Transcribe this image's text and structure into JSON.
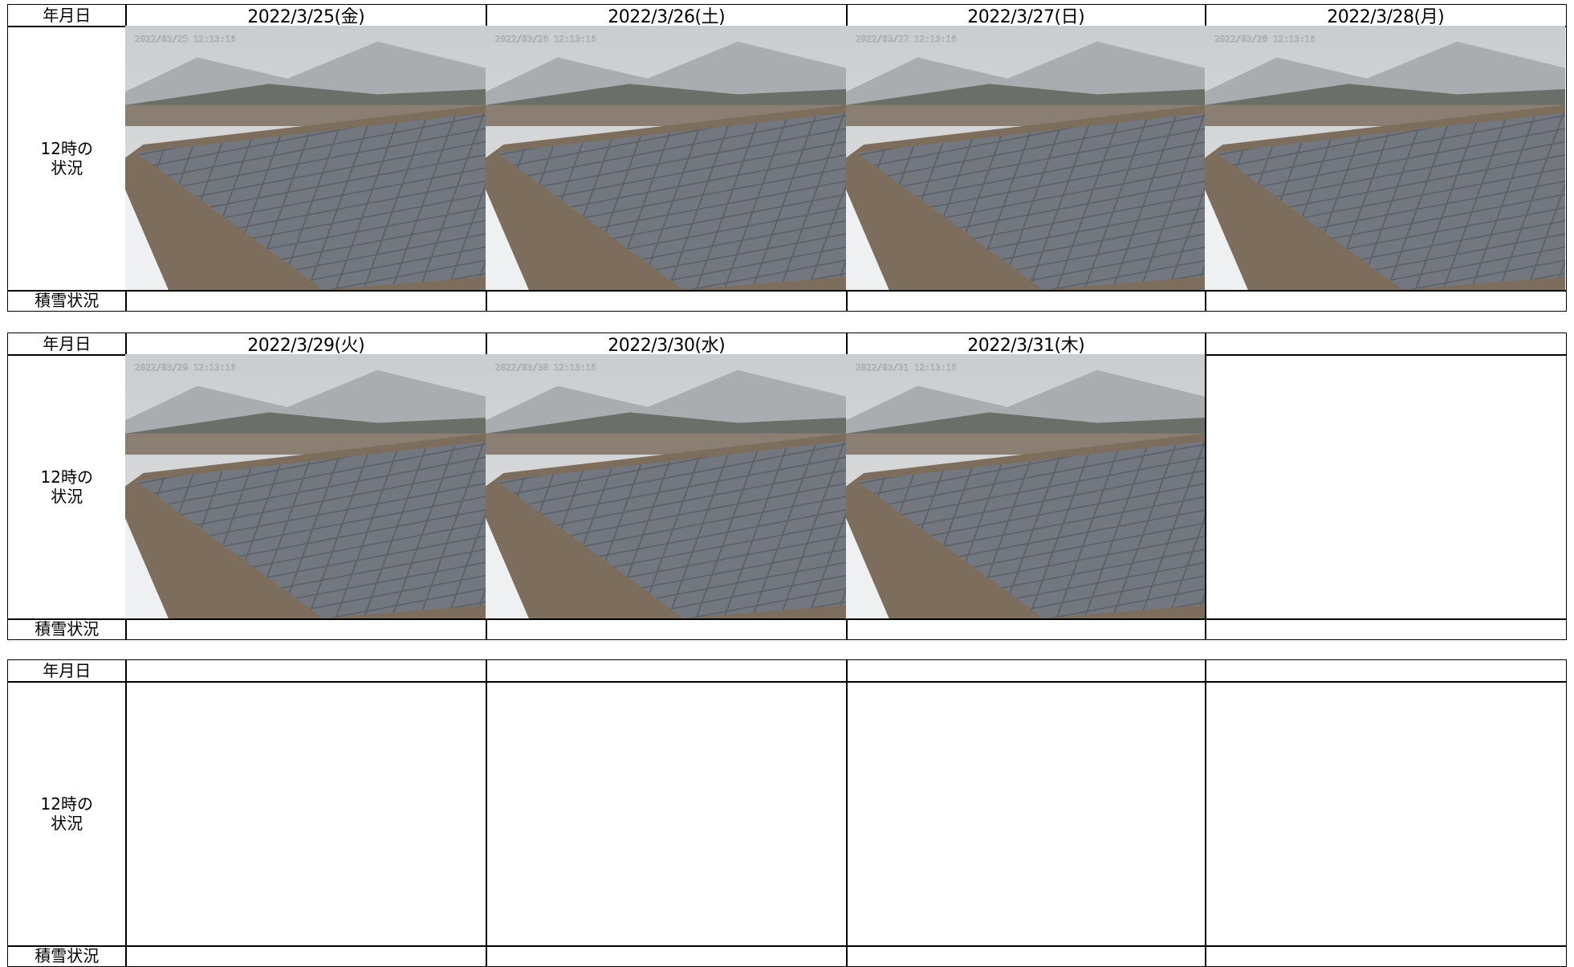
{
  "tables": [
    {
      "header_label": "年月日",
      "photo_label": "12時の\n状況",
      "snow_label": "積雪状況",
      "dates": [
        "2022/3/25(金)",
        "2022/3/26(土)",
        "2022/3/27(日)",
        "2022/3/28(月)"
      ],
      "photo_stamps": [
        "2022/03/25 12:13:16",
        "2022/03/26 12:13:16",
        "2022/03/27 12:13:16",
        "2022/03/28 12:13:16"
      ]
    },
    {
      "header_label": "年月日",
      "photo_label": "12時の\n状況",
      "snow_label": "積雪状況",
      "dates": [
        "2022/3/29(火)",
        "2022/3/30(水)",
        "2022/3/31(木)"
      ],
      "photo_stamps": [
        "2022/03/29 12:13:16",
        "2022/03/30 12:13:16",
        "2022/03/31 12:13:16"
      ]
    },
    {
      "header_label": "年月日",
      "photo_label": "12時の\n状況",
      "snow_label": "積雪状況",
      "dates": [],
      "photo_stamps": []
    }
  ]
}
